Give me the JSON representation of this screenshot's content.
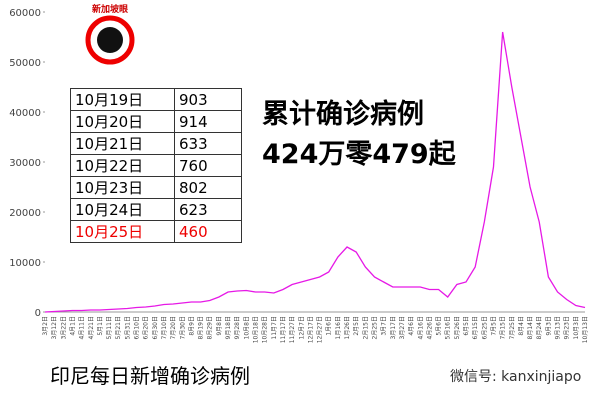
{
  "chart_data": {
    "type": "line",
    "categories": [
      "3月2日",
      "3月12日",
      "3月22日",
      "4月1日",
      "4月11日",
      "4月21日",
      "5月1日",
      "5月11日",
      "5月21日",
      "5月31日",
      "6月10日",
      "6月20日",
      "6月30日",
      "7月10日",
      "7月20日",
      "7月30日",
      "8月9日",
      "8月19日",
      "8月29日",
      "9月8日",
      "9月18日",
      "9月28日",
      "10月8日",
      "10月18日",
      "10月28日",
      "11月7日",
      "11月17日",
      "11月27日",
      "12月7日",
      "12月17日",
      "12月27日",
      "1月6日",
      "1月16日",
      "1月26日",
      "2月5日",
      "2月15日",
      "2月25日",
      "3月7日",
      "3月17日",
      "3月27日",
      "4月6日",
      "4月16日",
      "4月26日",
      "5月6日",
      "5月16日",
      "5月26日",
      "6月5日",
      "6月15日",
      "6月25日",
      "7月5日",
      "7月15日",
      "7月25日",
      "8月4日",
      "8月14日",
      "8月24日",
      "9月3日",
      "9月13日",
      "9月23日",
      "10月3日",
      "10月13日"
    ],
    "series": [
      {
        "name": "印尼每日新增确诊病例",
        "color": "#e619e6",
        "values": [
          0,
          100,
          200,
          300,
          300,
          400,
          400,
          500,
          600,
          700,
          900,
          1000,
          1200,
          1500,
          1600,
          1800,
          2000,
          2000,
          2300,
          3000,
          4000,
          4200,
          4300,
          4000,
          4000,
          3800,
          4500,
          5500,
          6000,
          6500,
          7000,
          8000,
          11000,
          13000,
          12000,
          9000,
          7000,
          6000,
          5000,
          5000,
          5000,
          5000,
          4500,
          4500,
          3000,
          5500,
          6000,
          9000,
          18000,
          29000,
          56000,
          45000,
          35000,
          25000,
          18000,
          7000,
          4000,
          2500,
          1300,
          900
        ]
      }
    ],
    "ylim": [
      0,
      60000
    ],
    "yticks": [
      0,
      10000,
      20000,
      30000,
      40000,
      50000,
      60000
    ]
  },
  "logo": "新加坡眼",
  "table": {
    "rows": [
      [
        "10月19日",
        "903"
      ],
      [
        "10月20日",
        "914"
      ],
      [
        "10月21日",
        "633"
      ],
      [
        "10月22日",
        "760"
      ],
      [
        "10月23日",
        "802"
      ],
      [
        "10月24日",
        "623"
      ],
      [
        "10月25日",
        "460"
      ]
    ]
  },
  "headline": [
    "累计确诊病例",
    "424万零479起"
  ],
  "caption": "印尼每日新增确诊病例",
  "watermark": "微信号: kanxinjiapo"
}
